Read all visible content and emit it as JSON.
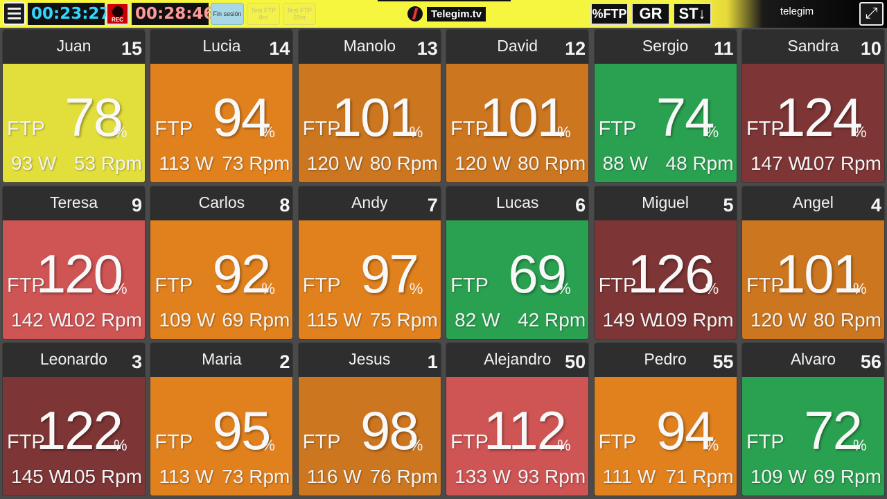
{
  "topbar": {
    "elapsed": "00:23:27",
    "remaining": "00:28:46",
    "rec_label": "REC",
    "fin_sesion": "Fin sesión",
    "test_ftp_8": "Test FTP 8m",
    "test_ftp_20": "Test FTP 20m",
    "brand": "Telegim.tv",
    "btn_ftp": "%FTP",
    "btn_gr": "GR",
    "btn_st": "ST↓",
    "user": "telegim"
  },
  "colors": {
    "yellow": "#e2de3c",
    "orange": "#e0811e",
    "orange_dark": "#cc761f",
    "green": "#29a150",
    "maroon": "#7e3535",
    "red": "#cf5454"
  },
  "tiles": [
    {
      "name": "Juan",
      "num": "15",
      "ftp_label": "FTP",
      "ftp": "78",
      "pct": "%",
      "watts": "93 W",
      "rpm": "53 Rpm",
      "color": "yellow"
    },
    {
      "name": "Lucia",
      "num": "14",
      "ftp_label": "FTP",
      "ftp": "94",
      "pct": "%",
      "watts": "113 W",
      "rpm": "73 Rpm",
      "color": "orange"
    },
    {
      "name": "Manolo",
      "num": "13",
      "ftp_label": "FTP",
      "ftp": "101",
      "pct": "%",
      "watts": "120 W",
      "rpm": "80 Rpm",
      "color": "orange-dark"
    },
    {
      "name": "David",
      "num": "12",
      "ftp_label": "FTP",
      "ftp": "101",
      "pct": "%",
      "watts": "120 W",
      "rpm": "80 Rpm",
      "color": "orange-dark"
    },
    {
      "name": "Sergio",
      "num": "11",
      "ftp_label": "FTP",
      "ftp": "74",
      "pct": "%",
      "watts": "88 W",
      "rpm": "48 Rpm",
      "color": "green"
    },
    {
      "name": "Sandra",
      "num": "10",
      "ftp_label": "FTP",
      "ftp": "124",
      "pct": "%",
      "watts": "147 W",
      "rpm": "107 Rpm",
      "color": "maroon"
    },
    {
      "name": "Teresa",
      "num": "9",
      "ftp_label": "FTP",
      "ftp": "120",
      "pct": "%",
      "watts": "142 W",
      "rpm": "102 Rpm",
      "color": "red"
    },
    {
      "name": "Carlos",
      "num": "8",
      "ftp_label": "FTP",
      "ftp": "92",
      "pct": "%",
      "watts": "109 W",
      "rpm": "69 Rpm",
      "color": "orange"
    },
    {
      "name": "Andy",
      "num": "7",
      "ftp_label": "FTP",
      "ftp": "97",
      "pct": "%",
      "watts": "115 W",
      "rpm": "75 Rpm",
      "color": "orange"
    },
    {
      "name": "Lucas",
      "num": "6",
      "ftp_label": "FTP",
      "ftp": "69",
      "pct": "%",
      "watts": "82 W",
      "rpm": "42 Rpm",
      "color": "green"
    },
    {
      "name": "Miguel",
      "num": "5",
      "ftp_label": "FTP",
      "ftp": "126",
      "pct": "%",
      "watts": "149 W",
      "rpm": "109 Rpm",
      "color": "maroon"
    },
    {
      "name": "Angel",
      "num": "4",
      "ftp_label": "FTP",
      "ftp": "101",
      "pct": "%",
      "watts": "120 W",
      "rpm": "80 Rpm",
      "color": "orange-dark"
    },
    {
      "name": "Leonardo",
      "num": "3",
      "ftp_label": "FTP",
      "ftp": "122",
      "pct": "%",
      "watts": "145 W",
      "rpm": "105 Rpm",
      "color": "maroon"
    },
    {
      "name": "Maria",
      "num": "2",
      "ftp_label": "FTP",
      "ftp": "95",
      "pct": "%",
      "watts": "113 W",
      "rpm": "73 Rpm",
      "color": "orange"
    },
    {
      "name": "Jesus",
      "num": "1",
      "ftp_label": "FTP",
      "ftp": "98",
      "pct": "%",
      "watts": "116 W",
      "rpm": "76 Rpm",
      "color": "orange-dark"
    },
    {
      "name": "Alejandro",
      "num": "50",
      "ftp_label": "FTP",
      "ftp": "112",
      "pct": "%",
      "watts": "133 W",
      "rpm": "93 Rpm",
      "color": "red"
    },
    {
      "name": "Pedro",
      "num": "55",
      "ftp_label": "FTP",
      "ftp": "94",
      "pct": "%",
      "watts": "111 W",
      "rpm": "71 Rpm",
      "color": "orange"
    },
    {
      "name": "Alvaro",
      "num": "56",
      "ftp_label": "FTP",
      "ftp": "72",
      "pct": "%",
      "watts": "109 W",
      "rpm": "69 Rpm",
      "color": "green"
    }
  ]
}
